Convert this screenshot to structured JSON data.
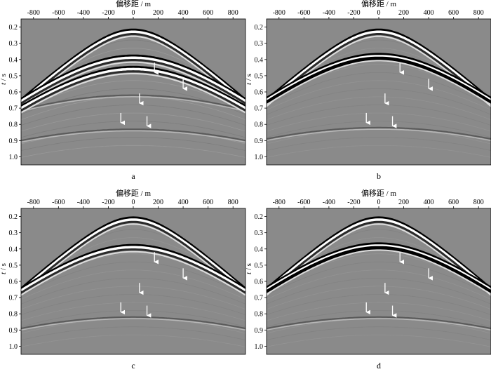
{
  "figure": {
    "panels": [
      {
        "id": "a",
        "label": "a",
        "main_events": [
          {
            "apex_t": 0.23,
            "dark": false
          },
          {
            "apex_t": 0.39,
            "dark": false
          },
          {
            "apex_t": 0.46,
            "dark": false
          }
        ],
        "weak_events": [
          0.62,
          0.83
        ],
        "arrows": [
          [
            170,
            0.48
          ],
          [
            400,
            0.58
          ],
          [
            50,
            0.67
          ],
          [
            -100,
            0.79
          ],
          [
            110,
            0.81
          ]
        ]
      },
      {
        "id": "b",
        "label": "b",
        "main_events": [
          {
            "apex_t": 0.23,
            "dark": false
          },
          {
            "apex_t": 0.38,
            "dark": true
          }
        ],
        "weak_events": [
          0.82
        ],
        "arrows": [
          [
            170,
            0.48
          ],
          [
            400,
            0.58
          ],
          [
            50,
            0.67
          ],
          [
            -100,
            0.79
          ],
          [
            110,
            0.81
          ]
        ]
      },
      {
        "id": "c",
        "label": "c",
        "main_events": [
          {
            "apex_t": 0.22,
            "dark": false
          },
          {
            "apex_t": 0.39,
            "dark": false
          }
        ],
        "weak_events": [
          0.82
        ],
        "arrows": [
          [
            170,
            0.48
          ],
          [
            400,
            0.58
          ],
          [
            50,
            0.67
          ],
          [
            -100,
            0.79
          ],
          [
            110,
            0.81
          ]
        ]
      },
      {
        "id": "d",
        "label": "d",
        "main_events": [
          {
            "apex_t": 0.22,
            "dark": false
          },
          {
            "apex_t": 0.38,
            "dark": true
          }
        ],
        "weak_events": [
          0.82
        ],
        "arrows": [
          [
            170,
            0.48
          ],
          [
            400,
            0.58
          ],
          [
            50,
            0.67
          ],
          [
            -100,
            0.79
          ],
          [
            110,
            0.81
          ]
        ]
      }
    ],
    "x_axis": {
      "title": "偏移距 / m",
      "ticks": [
        -800,
        -600,
        -400,
        -200,
        0,
        200,
        400,
        600,
        800
      ],
      "range": [
        -900,
        900
      ]
    },
    "y_axis": {
      "title_var": "t",
      "title_unit": " / s",
      "ticks": [
        "0.2",
        "0.3",
        "0.4",
        "0.5",
        "0.6",
        "0.7",
        "0.8",
        "0.9",
        "1.0"
      ],
      "range": [
        0.15,
        1.05
      ]
    },
    "colors": {
      "background": "#8a8a8a",
      "white": "#ffffff",
      "black": "#000000",
      "arrow": "#ffffff"
    }
  }
}
